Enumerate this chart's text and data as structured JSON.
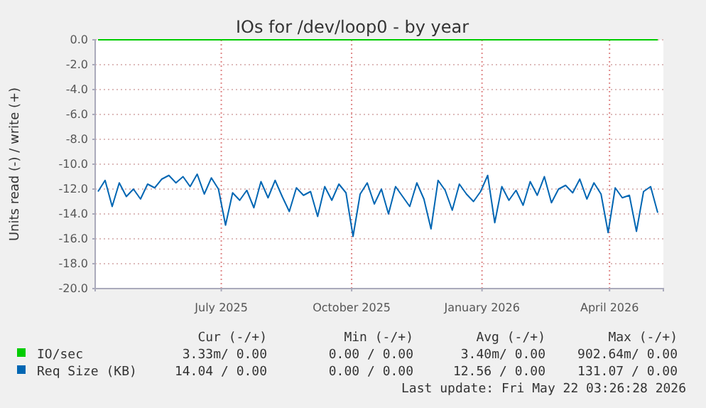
{
  "chart_data": {
    "type": "line",
    "title": "IOs for /dev/loop0 - by year",
    "ylabel": "Units read (-) / write (+)",
    "xlim": [
      "2025-04-03",
      "2026-05-09"
    ],
    "xticks": [
      {
        "value": "2025-07-01",
        "label": "July 2025"
      },
      {
        "value": "2025-10-01",
        "label": "October 2025"
      },
      {
        "value": "2026-01-01",
        "label": "January 2026"
      },
      {
        "value": "2026-04-01",
        "label": "April 2026"
      }
    ],
    "ylim": [
      -20,
      0
    ],
    "yticks": [
      {
        "value": -20,
        "label": "-20.0"
      },
      {
        "value": -18,
        "label": "-18.0"
      },
      {
        "value": -16,
        "label": "-16.0"
      },
      {
        "value": -14,
        "label": "-14.0"
      },
      {
        "value": -12,
        "label": "-12.0"
      },
      {
        "value": -10,
        "label": "-10.0"
      },
      {
        "value": -8,
        "label": "-8.0"
      },
      {
        "value": -6,
        "label": "-6.0"
      },
      {
        "value": -4,
        "label": "-4.0"
      },
      {
        "value": -2,
        "label": "-2.0"
      },
      {
        "value": 0,
        "label": "0.0"
      }
    ],
    "grid": true,
    "legend": "bottom left",
    "series": [
      {
        "name": "IO/sec",
        "color": "#00cc00",
        "x": [
          "2025-04-05",
          "2026-05-05"
        ],
        "values": [
          0,
          0
        ]
      },
      {
        "name": "Req Size (KB)",
        "color": "#0066b3",
        "x": [
          "2025-04-05",
          "2025-04-10",
          "2025-04-15",
          "2025-04-20",
          "2025-04-25",
          "2025-04-30",
          "2025-05-05",
          "2025-05-10",
          "2025-05-15",
          "2025-05-20",
          "2025-05-25",
          "2025-05-30",
          "2025-06-04",
          "2025-06-09",
          "2025-06-14",
          "2025-06-19",
          "2025-06-24",
          "2025-06-29",
          "2025-07-04",
          "2025-07-09",
          "2025-07-14",
          "2025-07-19",
          "2025-07-24",
          "2025-07-29",
          "2025-08-03",
          "2025-08-08",
          "2025-08-13",
          "2025-08-18",
          "2025-08-23",
          "2025-08-28",
          "2025-09-02",
          "2025-09-07",
          "2025-09-12",
          "2025-09-17",
          "2025-09-22",
          "2025-09-27",
          "2025-10-02",
          "2025-10-07",
          "2025-10-12",
          "2025-10-17",
          "2025-10-22",
          "2025-10-27",
          "2025-11-01",
          "2025-11-06",
          "2025-11-11",
          "2025-11-16",
          "2025-11-21",
          "2025-11-26",
          "2025-12-01",
          "2025-12-06",
          "2025-12-11",
          "2025-12-16",
          "2025-12-21",
          "2025-12-26",
          "2025-12-31",
          "2026-01-05",
          "2026-01-10",
          "2026-01-15",
          "2026-01-20",
          "2026-01-25",
          "2026-01-30",
          "2026-02-04",
          "2026-02-09",
          "2026-02-14",
          "2026-02-19",
          "2026-02-24",
          "2026-03-01",
          "2026-03-06",
          "2026-03-11",
          "2026-03-16",
          "2026-03-21",
          "2026-03-26",
          "2026-03-31",
          "2026-04-05",
          "2026-04-10",
          "2026-04-15",
          "2026-04-20",
          "2026-04-25",
          "2026-04-30",
          "2026-05-05"
        ],
        "values": [
          -12.2,
          -11.3,
          -13.4,
          -11.5,
          -12.6,
          -12.0,
          -12.8,
          -11.6,
          -11.9,
          -11.2,
          -10.9,
          -11.5,
          -11.0,
          -11.8,
          -10.8,
          -12.4,
          -11.1,
          -12.0,
          -14.9,
          -12.3,
          -12.9,
          -12.1,
          -13.5,
          -11.4,
          -12.7,
          -11.3,
          -12.6,
          -13.8,
          -11.9,
          -12.5,
          -12.2,
          -14.2,
          -11.8,
          -12.9,
          -11.6,
          -12.3,
          -15.8,
          -12.4,
          -11.5,
          -13.2,
          -12.0,
          -14.0,
          -11.8,
          -12.6,
          -13.4,
          -11.5,
          -12.8,
          -15.2,
          -11.3,
          -12.1,
          -13.7,
          -11.6,
          -12.4,
          -13.0,
          -12.2,
          -10.9,
          -14.7,
          -11.8,
          -12.9,
          -12.1,
          -13.3,
          -11.4,
          -12.5,
          -11.0,
          -13.1,
          -12.0,
          -11.7,
          -12.3,
          -11.2,
          -12.8,
          -11.5,
          -12.4,
          -15.5,
          -11.9,
          -12.7,
          -12.5,
          -15.4,
          -12.2,
          -11.8,
          -13.9
        ]
      }
    ],
    "annotations": [
      "Cur (-/+)",
      "Min (-/+)",
      "Avg (-/+)",
      "Max (-/+)",
      "3.33m/ 0.00",
      "0.00 / 0.00",
      "3.40m/ 0.00",
      "902.64m/ 0.00",
      "14.04 / 0.00",
      "0.00 / 0.00",
      "12.56 / 0.00",
      "131.07 / 0.00",
      "Last update: Fri May 22 03:26:28 2026"
    ]
  }
}
